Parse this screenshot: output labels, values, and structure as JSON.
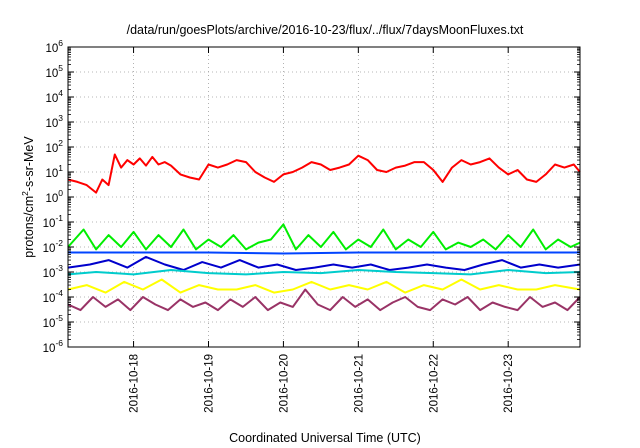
{
  "chart_data": {
    "type": "line",
    "title": "/data/run/goesPlots/archive/2016-10-23/flux/../flux/7daysMoonFluxes.txt",
    "xlabel": "Coordinated Universal Time (UTC)",
    "ylabel": "protons/cm²-s-sr-MeV",
    "ylabel_parts": {
      "pre": "protons/cm",
      "sup": "2",
      "post": "-s-sr-MeV"
    },
    "y_scale": "log",
    "ylim": [
      1e-06,
      1000000.0
    ],
    "y_ticks": [
      {
        "exp": "-6",
        "value": 1e-06
      },
      {
        "exp": "-5",
        "value": 1e-05
      },
      {
        "exp": "-4",
        "value": 0.0001
      },
      {
        "exp": "-3",
        "value": 0.001
      },
      {
        "exp": "-2",
        "value": 0.01
      },
      {
        "exp": "-1",
        "value": 0.1
      },
      {
        "exp": "0",
        "value": 1
      },
      {
        "exp": "1",
        "value": 10
      },
      {
        "exp": "2",
        "value": 100
      },
      {
        "exp": "3",
        "value": 1000
      },
      {
        "exp": "4",
        "value": 10000
      },
      {
        "exp": "5",
        "value": 100000
      },
      {
        "exp": "6",
        "value": 1000000
      }
    ],
    "y_tick_base": "10",
    "xlim": [
      "2016-10-17 03:00",
      "2016-10-23 23:00"
    ],
    "x_ticks": [
      "2016-10-18",
      "2016-10-19",
      "2016-10-20",
      "2016-10-21",
      "2016-10-22",
      "2016-10-23"
    ],
    "grid": true,
    "legend": "none",
    "series": [
      {
        "color": "#ff0000",
        "x": [
          "2016-10-17 03:00",
          "2016-10-17 06:00",
          "2016-10-17 09:00",
          "2016-10-17 12:00",
          "2016-10-17 14:00",
          "2016-10-17 16:00",
          "2016-10-17 18:00",
          "2016-10-17 20:00",
          "2016-10-17 22:00",
          "2016-10-18 00:00",
          "2016-10-18 02:00",
          "2016-10-18 04:00",
          "2016-10-18 06:00",
          "2016-10-18 08:00",
          "2016-10-18 10:00",
          "2016-10-18 12:00",
          "2016-10-18 15:00",
          "2016-10-18 18:00",
          "2016-10-18 21:00",
          "2016-10-19 00:00",
          "2016-10-19 03:00",
          "2016-10-19 06:00",
          "2016-10-19 09:00",
          "2016-10-19 12:00",
          "2016-10-19 15:00",
          "2016-10-19 18:00",
          "2016-10-19 21:00",
          "2016-10-20 00:00",
          "2016-10-20 03:00",
          "2016-10-20 06:00",
          "2016-10-20 09:00",
          "2016-10-20 12:00",
          "2016-10-20 15:00",
          "2016-10-20 18:00",
          "2016-10-20 21:00",
          "2016-10-21 00:00",
          "2016-10-21 03:00",
          "2016-10-21 06:00",
          "2016-10-21 09:00",
          "2016-10-21 12:00",
          "2016-10-21 15:00",
          "2016-10-21 18:00",
          "2016-10-21 21:00",
          "2016-10-22 00:00",
          "2016-10-22 03:00",
          "2016-10-22 06:00",
          "2016-10-22 09:00",
          "2016-10-22 12:00",
          "2016-10-22 15:00",
          "2016-10-22 18:00",
          "2016-10-22 21:00",
          "2016-10-23 00:00",
          "2016-10-23 03:00",
          "2016-10-23 06:00",
          "2016-10-23 09:00",
          "2016-10-23 12:00",
          "2016-10-23 15:00",
          "2016-10-23 18:00",
          "2016-10-23 21:00",
          "2016-10-23 23:00"
        ],
        "y": [
          5,
          4,
          3,
          1.5,
          5,
          3,
          50,
          15,
          30,
          20,
          35,
          18,
          40,
          20,
          25,
          18,
          8,
          6,
          5,
          20,
          15,
          20,
          30,
          25,
          10,
          6,
          4,
          8,
          10,
          15,
          25,
          20,
          12,
          15,
          20,
          45,
          30,
          12,
          10,
          15,
          18,
          25,
          25,
          12,
          4,
          15,
          30,
          20,
          25,
          35,
          15,
          8,
          12,
          5,
          4,
          8,
          20,
          15,
          20,
          10
        ]
      },
      {
        "color": "#00ee00",
        "x": [
          "2016-10-17 03:00",
          "2016-10-17 08:00",
          "2016-10-17 12:00",
          "2016-10-17 16:00",
          "2016-10-17 20:00",
          "2016-10-18 00:00",
          "2016-10-18 04:00",
          "2016-10-18 08:00",
          "2016-10-18 12:00",
          "2016-10-18 16:00",
          "2016-10-18 20:00",
          "2016-10-19 00:00",
          "2016-10-19 04:00",
          "2016-10-19 08:00",
          "2016-10-19 12:00",
          "2016-10-19 16:00",
          "2016-10-19 20:00",
          "2016-10-20 00:00",
          "2016-10-20 04:00",
          "2016-10-20 08:00",
          "2016-10-20 12:00",
          "2016-10-20 16:00",
          "2016-10-20 20:00",
          "2016-10-21 00:00",
          "2016-10-21 04:00",
          "2016-10-21 08:00",
          "2016-10-21 12:00",
          "2016-10-21 16:00",
          "2016-10-21 20:00",
          "2016-10-22 00:00",
          "2016-10-22 04:00",
          "2016-10-22 08:00",
          "2016-10-22 12:00",
          "2016-10-22 16:00",
          "2016-10-22 20:00",
          "2016-10-23 00:00",
          "2016-10-23 04:00",
          "2016-10-23 08:00",
          "2016-10-23 12:00",
          "2016-10-23 16:00",
          "2016-10-23 20:00",
          "2016-10-23 23:00"
        ],
        "y": [
          0.01,
          0.05,
          0.008,
          0.03,
          0.01,
          0.04,
          0.008,
          0.03,
          0.01,
          0.05,
          0.008,
          0.02,
          0.01,
          0.03,
          0.008,
          0.015,
          0.02,
          0.08,
          0.008,
          0.03,
          0.01,
          0.04,
          0.008,
          0.02,
          0.01,
          0.05,
          0.008,
          0.02,
          0.01,
          0.04,
          0.008,
          0.015,
          0.01,
          0.02,
          0.008,
          0.03,
          0.01,
          0.05,
          0.008,
          0.02,
          0.01,
          0.015
        ]
      },
      {
        "color": "#0044ff",
        "x": [
          "2016-10-17 03:00",
          "2016-10-18 00:00",
          "2016-10-19 00:00",
          "2016-10-20 00:00",
          "2016-10-21 00:00",
          "2016-10-22 00:00",
          "2016-10-23 00:00",
          "2016-10-23 23:00"
        ],
        "y": [
          0.006,
          0.006,
          0.006,
          0.0055,
          0.006,
          0.006,
          0.006,
          0.006
        ]
      },
      {
        "color": "#0000cc",
        "x": [
          "2016-10-17 03:00",
          "2016-10-17 10:00",
          "2016-10-17 16:00",
          "2016-10-17 22:00",
          "2016-10-18 04:00",
          "2016-10-18 10:00",
          "2016-10-18 16:00",
          "2016-10-18 22:00",
          "2016-10-19 04:00",
          "2016-10-19 10:00",
          "2016-10-19 16:00",
          "2016-10-19 22:00",
          "2016-10-20 04:00",
          "2016-10-20 10:00",
          "2016-10-20 16:00",
          "2016-10-20 22:00",
          "2016-10-21 04:00",
          "2016-10-21 10:00",
          "2016-10-21 16:00",
          "2016-10-21 22:00",
          "2016-10-22 04:00",
          "2016-10-22 10:00",
          "2016-10-22 16:00",
          "2016-10-22 22:00",
          "2016-10-23 04:00",
          "2016-10-23 10:00",
          "2016-10-23 16:00",
          "2016-10-23 23:00"
        ],
        "y": [
          0.0015,
          0.002,
          0.003,
          0.0015,
          0.004,
          0.002,
          0.0012,
          0.0025,
          0.0015,
          0.003,
          0.0015,
          0.002,
          0.0012,
          0.0015,
          0.002,
          0.0015,
          0.002,
          0.0012,
          0.0015,
          0.002,
          0.0015,
          0.0012,
          0.002,
          0.003,
          0.0015,
          0.002,
          0.0015,
          0.002
        ]
      },
      {
        "color": "#00cccc",
        "x": [
          "2016-10-17 03:00",
          "2016-10-17 12:00",
          "2016-10-18 00:00",
          "2016-10-18 12:00",
          "2016-10-19 00:00",
          "2016-10-19 12:00",
          "2016-10-20 00:00",
          "2016-10-20 12:00",
          "2016-10-21 00:00",
          "2016-10-21 12:00",
          "2016-10-22 00:00",
          "2016-10-22 12:00",
          "2016-10-23 00:00",
          "2016-10-23 12:00",
          "2016-10-23 23:00"
        ],
        "y": [
          0.0008,
          0.001,
          0.0008,
          0.0012,
          0.0009,
          0.0008,
          0.001,
          0.0009,
          0.0012,
          0.001,
          0.0009,
          0.0008,
          0.0012,
          0.0009,
          0.001
        ]
      },
      {
        "color": "#ffff00",
        "x": [
          "2016-10-17 03:00",
          "2016-10-17 09:00",
          "2016-10-17 15:00",
          "2016-10-17 21:00",
          "2016-10-18 03:00",
          "2016-10-18 09:00",
          "2016-10-18 15:00",
          "2016-10-18 21:00",
          "2016-10-19 03:00",
          "2016-10-19 09:00",
          "2016-10-19 15:00",
          "2016-10-19 21:00",
          "2016-10-20 03:00",
          "2016-10-20 09:00",
          "2016-10-20 15:00",
          "2016-10-20 21:00",
          "2016-10-21 03:00",
          "2016-10-21 09:00",
          "2016-10-21 15:00",
          "2016-10-21 21:00",
          "2016-10-22 03:00",
          "2016-10-22 09:00",
          "2016-10-22 15:00",
          "2016-10-22 21:00",
          "2016-10-23 03:00",
          "2016-10-23 09:00",
          "2016-10-23 15:00",
          "2016-10-23 23:00"
        ],
        "y": [
          0.0002,
          0.0003,
          0.00015,
          0.0004,
          0.0002,
          0.0005,
          0.00015,
          0.0003,
          0.0002,
          0.0002,
          0.0003,
          0.00015,
          0.0002,
          0.0004,
          0.0002,
          0.0003,
          0.0002,
          0.0004,
          0.00015,
          0.0003,
          0.0002,
          0.0005,
          0.0002,
          0.0003,
          0.0002,
          0.0002,
          0.0003,
          0.0002
        ]
      },
      {
        "color": "#993366",
        "x": [
          "2016-10-17 03:00",
          "2016-10-17 07:00",
          "2016-10-17 11:00",
          "2016-10-17 15:00",
          "2016-10-17 19:00",
          "2016-10-17 23:00",
          "2016-10-18 03:00",
          "2016-10-18 07:00",
          "2016-10-18 11:00",
          "2016-10-18 15:00",
          "2016-10-18 19:00",
          "2016-10-18 23:00",
          "2016-10-19 03:00",
          "2016-10-19 07:00",
          "2016-10-19 11:00",
          "2016-10-19 15:00",
          "2016-10-19 19:00",
          "2016-10-19 23:00",
          "2016-10-20 03:00",
          "2016-10-20 07:00",
          "2016-10-20 11:00",
          "2016-10-20 15:00",
          "2016-10-20 19:00",
          "2016-10-20 23:00",
          "2016-10-21 03:00",
          "2016-10-21 07:00",
          "2016-10-21 11:00",
          "2016-10-21 15:00",
          "2016-10-21 19:00",
          "2016-10-21 23:00",
          "2016-10-22 03:00",
          "2016-10-22 07:00",
          "2016-10-22 11:00",
          "2016-10-22 15:00",
          "2016-10-22 19:00",
          "2016-10-22 23:00",
          "2016-10-23 03:00",
          "2016-10-23 07:00",
          "2016-10-23 11:00",
          "2016-10-23 15:00",
          "2016-10-23 19:00",
          "2016-10-23 23:00"
        ],
        "y": [
          5e-05,
          3e-05,
          0.0001,
          4e-05,
          8e-05,
          3e-05,
          0.0001,
          5e-05,
          3e-05,
          8e-05,
          4e-05,
          6e-05,
          3e-05,
          8e-05,
          4e-05,
          0.0001,
          3e-05,
          6e-05,
          4e-05,
          0.0002,
          5e-05,
          3e-05,
          0.0001,
          4e-05,
          8e-05,
          3e-05,
          6e-05,
          0.0001,
          4e-05,
          3e-05,
          8e-05,
          5e-05,
          0.0001,
          3e-05,
          6e-05,
          4e-05,
          3e-05,
          0.0001,
          4e-05,
          6e-05,
          3e-05,
          0.0001
        ]
      }
    ]
  }
}
